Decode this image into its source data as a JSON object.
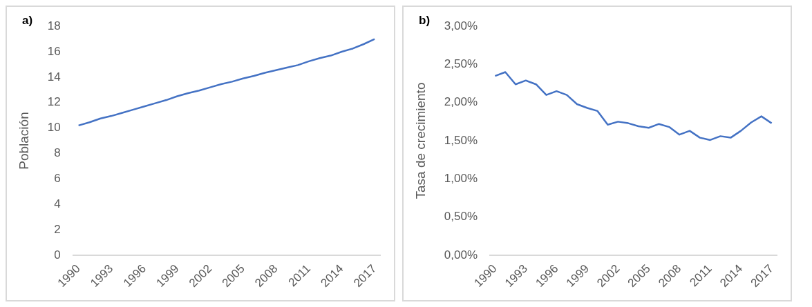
{
  "chart_data": [
    {
      "type": "line",
      "title": "a)",
      "ylabel": "Población",
      "categories": [
        "1990",
        null,
        null,
        "1993",
        null,
        null,
        "1996",
        null,
        null,
        "1999",
        null,
        null,
        "2002",
        null,
        null,
        "2005",
        null,
        null,
        "2008",
        null,
        null,
        "2011",
        null,
        null,
        "2014",
        null,
        null,
        "2017"
      ],
      "series": [
        {
          "color": "#4472c4",
          "values": [
            10.2,
            10.45,
            10.75,
            10.95,
            11.2,
            11.45,
            11.7,
            11.95,
            12.2,
            12.5,
            12.75,
            12.95,
            13.2,
            13.45,
            13.65,
            13.9,
            14.1,
            14.35,
            14.55,
            14.75,
            14.95,
            15.25,
            15.5,
            15.7,
            16.0,
            16.25,
            16.6,
            17.0
          ]
        }
      ],
      "ylim": [
        0,
        18
      ],
      "yticks": [
        0,
        2,
        4,
        6,
        8,
        10,
        12,
        14,
        16,
        18
      ],
      "grid": false,
      "legend": false,
      "marker": "none",
      "line_style": "solid"
    },
    {
      "type": "line",
      "title": "b)",
      "ylabel": "Tasa de crecimiento",
      "categories": [
        "1990",
        null,
        null,
        "1993",
        null,
        null,
        "1996",
        null,
        null,
        "1999",
        null,
        null,
        "2002",
        null,
        null,
        "2005",
        null,
        null,
        "2008",
        null,
        null,
        "2011",
        null,
        null,
        "2014",
        null,
        null,
        "2017"
      ],
      "series": [
        {
          "color": "#4472c4",
          "values": [
            2.35,
            2.4,
            2.24,
            2.29,
            2.24,
            2.1,
            2.15,
            2.1,
            1.98,
            1.93,
            1.89,
            1.71,
            1.75,
            1.73,
            1.69,
            1.67,
            1.72,
            1.68,
            1.58,
            1.63,
            1.54,
            1.51,
            1.56,
            1.54,
            1.63,
            1.74,
            1.82,
            1.73
          ]
        }
      ],
      "ylim": [
        0,
        3
      ],
      "yticks": [
        {
          "value": 0,
          "label": "0,00%"
        },
        {
          "value": 0.5,
          "label": "0,50%"
        },
        {
          "value": 1,
          "label": "1,00%"
        },
        {
          "value": 1.5,
          "label": "1,50%"
        },
        {
          "value": 2,
          "label": "2,00%"
        },
        {
          "value": 2.5,
          "label": "2,50%"
        },
        {
          "value": 3,
          "label": "3,00%"
        }
      ],
      "grid": false,
      "legend": false,
      "marker": "none",
      "line_style": "solid"
    }
  ]
}
